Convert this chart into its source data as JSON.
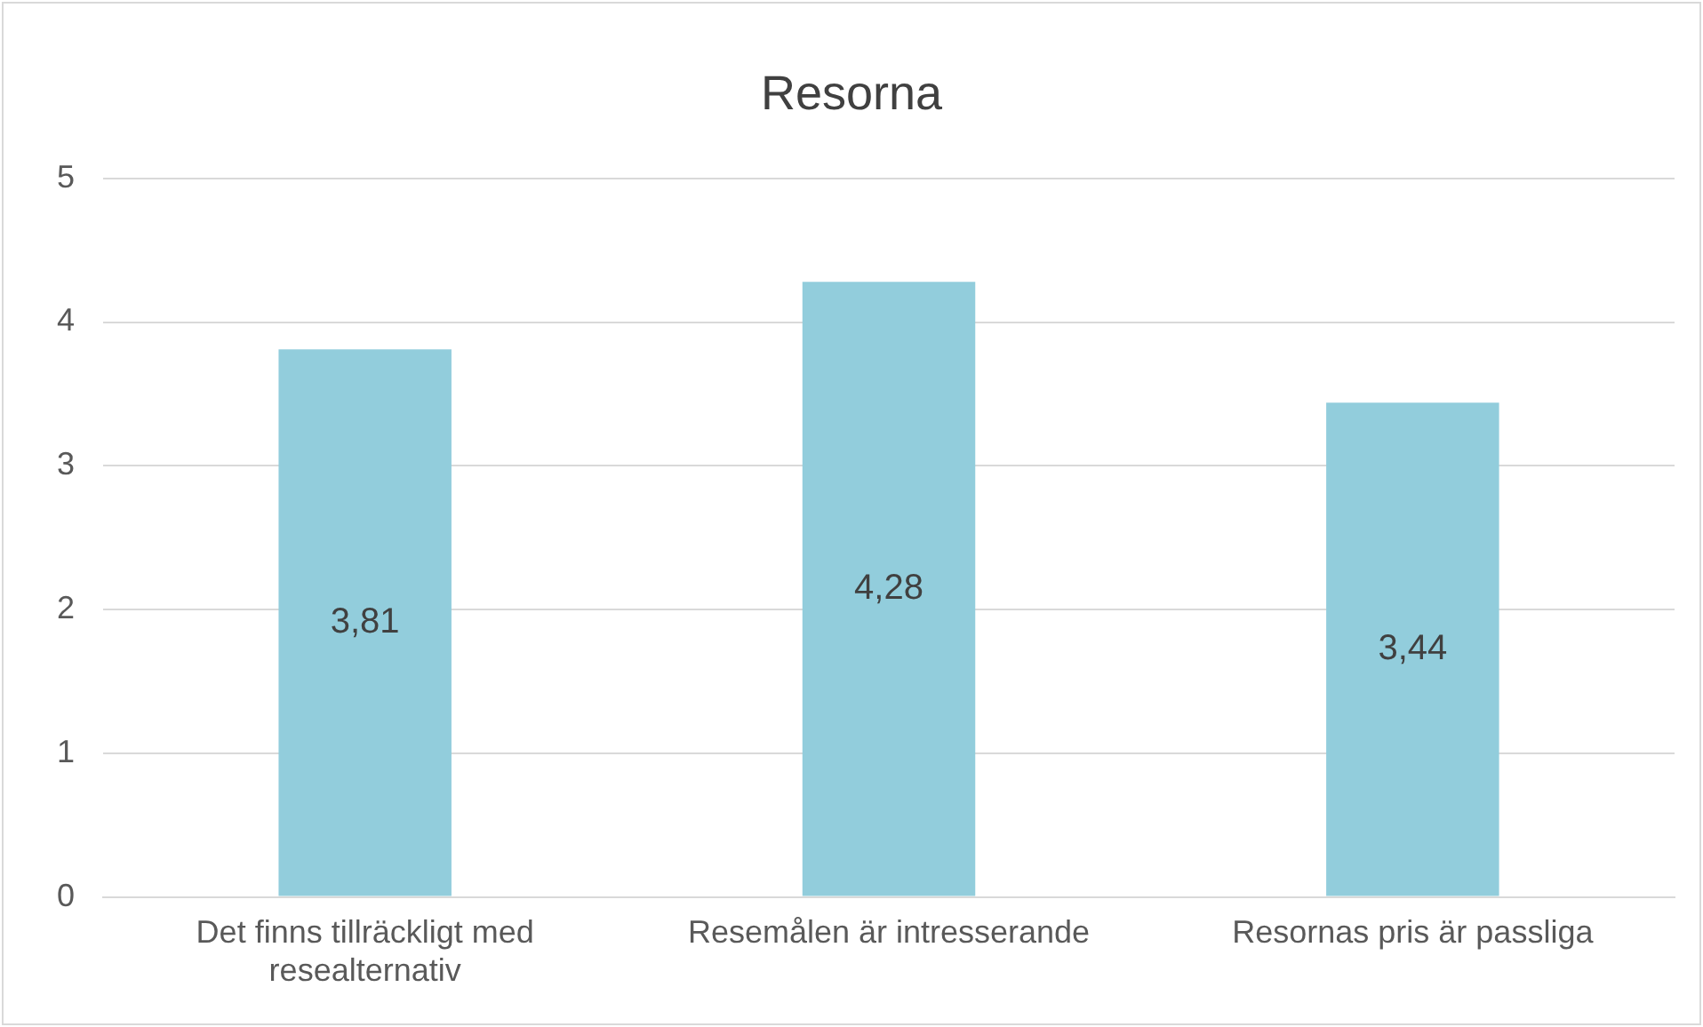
{
  "chart_data": {
    "type": "bar",
    "title": "Resorna",
    "categories": [
      "Det finns tillräckligt med resealternativ",
      "Resemålen är intresserande",
      "Resornas pris är passliga"
    ],
    "values": [
      3.81,
      4.28,
      3.44
    ],
    "value_labels": [
      "3,81",
      "4,28",
      "3,44"
    ],
    "color": "#92cddc",
    "ylim": [
      0,
      5
    ],
    "yticks": [
      0,
      1,
      2,
      3,
      4,
      5
    ],
    "grid": "y",
    "legend": false
  }
}
